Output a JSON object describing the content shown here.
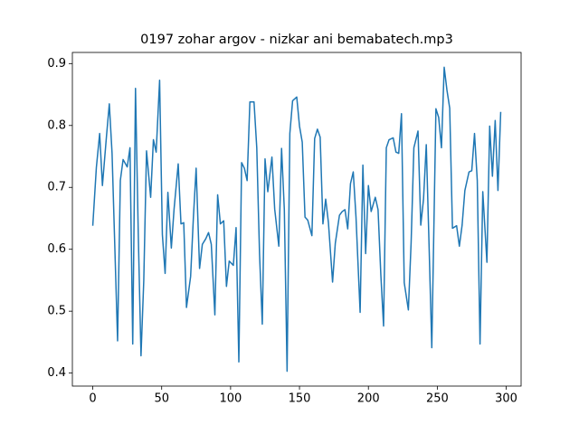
{
  "chart_data": {
    "type": "line",
    "title": "0197 zohar argov - nizkar ani bemabatech.mp3",
    "x": [
      0,
      2.6,
      5,
      7,
      10,
      12,
      14,
      18,
      20,
      22,
      25,
      27,
      29,
      31,
      33,
      35,
      37,
      39,
      42,
      44,
      46,
      48.5,
      50.5,
      52.5,
      54.5,
      57,
      59,
      62,
      64,
      66,
      68,
      71,
      73,
      75,
      77.5,
      79.5,
      82,
      84,
      86,
      88.6,
      90.6,
      92.6,
      95,
      97,
      99,
      102,
      104,
      106,
      108,
      110,
      112,
      114,
      117,
      119,
      121,
      123,
      125,
      127,
      130,
      132,
      135,
      137,
      139,
      141,
      143,
      145,
      148,
      150,
      152,
      154,
      156,
      159,
      161,
      163,
      165,
      167,
      169,
      171,
      174,
      176,
      179,
      181,
      183,
      185,
      187,
      189,
      191,
      194,
      196,
      198,
      200,
      202,
      205,
      207,
      209,
      211,
      213,
      215,
      218,
      220,
      222,
      224,
      226,
      229,
      231,
      233,
      236,
      238,
      240,
      242,
      244,
      246,
      249,
      251,
      253,
      255,
      257,
      259,
      261,
      264,
      266,
      268,
      270,
      273,
      275,
      277,
      279,
      281,
      283,
      286,
      288,
      290,
      292,
      294,
      296
    ],
    "series": [
      {
        "color": "#1f77b4",
        "values": [
          0.638,
          0.732,
          0.787,
          0.703,
          0.784,
          0.835,
          0.755,
          0.452,
          0.711,
          0.745,
          0.733,
          0.764,
          0.447,
          0.86,
          0.626,
          0.428,
          0.549,
          0.759,
          0.684,
          0.777,
          0.757,
          0.873,
          0.624,
          0.561,
          0.692,
          0.602,
          0.665,
          0.738,
          0.641,
          0.643,
          0.506,
          0.556,
          0.651,
          0.731,
          0.569,
          0.608,
          0.617,
          0.627,
          0.608,
          0.494,
          0.688,
          0.641,
          0.646,
          0.54,
          0.581,
          0.574,
          0.635,
          0.418,
          0.74,
          0.731,
          0.711,
          0.838,
          0.838,
          0.764,
          0.593,
          0.479,
          0.746,
          0.693,
          0.749,
          0.665,
          0.605,
          0.763,
          0.664,
          0.403,
          0.787,
          0.84,
          0.846,
          0.799,
          0.773,
          0.652,
          0.647,
          0.622,
          0.779,
          0.794,
          0.781,
          0.641,
          0.681,
          0.643,
          0.547,
          0.61,
          0.655,
          0.661,
          0.664,
          0.633,
          0.706,
          0.725,
          0.652,
          0.498,
          0.736,
          0.593,
          0.703,
          0.661,
          0.684,
          0.664,
          0.56,
          0.476,
          0.764,
          0.777,
          0.78,
          0.757,
          0.755,
          0.819,
          0.546,
          0.502,
          0.611,
          0.764,
          0.791,
          0.639,
          0.681,
          0.769,
          0.608,
          0.441,
          0.827,
          0.813,
          0.764,
          0.894,
          0.857,
          0.828,
          0.634,
          0.638,
          0.605,
          0.639,
          0.695,
          0.725,
          0.727,
          0.787,
          0.711,
          0.447,
          0.693,
          0.579,
          0.799,
          0.718,
          0.808,
          0.695,
          0.822
        ]
      }
    ],
    "xlim": [
      -14.8,
      310.8
    ],
    "ylim": [
      0.379,
      0.918
    ],
    "xticks": [
      0,
      50,
      100,
      150,
      200,
      250,
      300
    ],
    "yticks": [
      0.4,
      0.5,
      0.6,
      0.7,
      0.8,
      0.9
    ]
  }
}
